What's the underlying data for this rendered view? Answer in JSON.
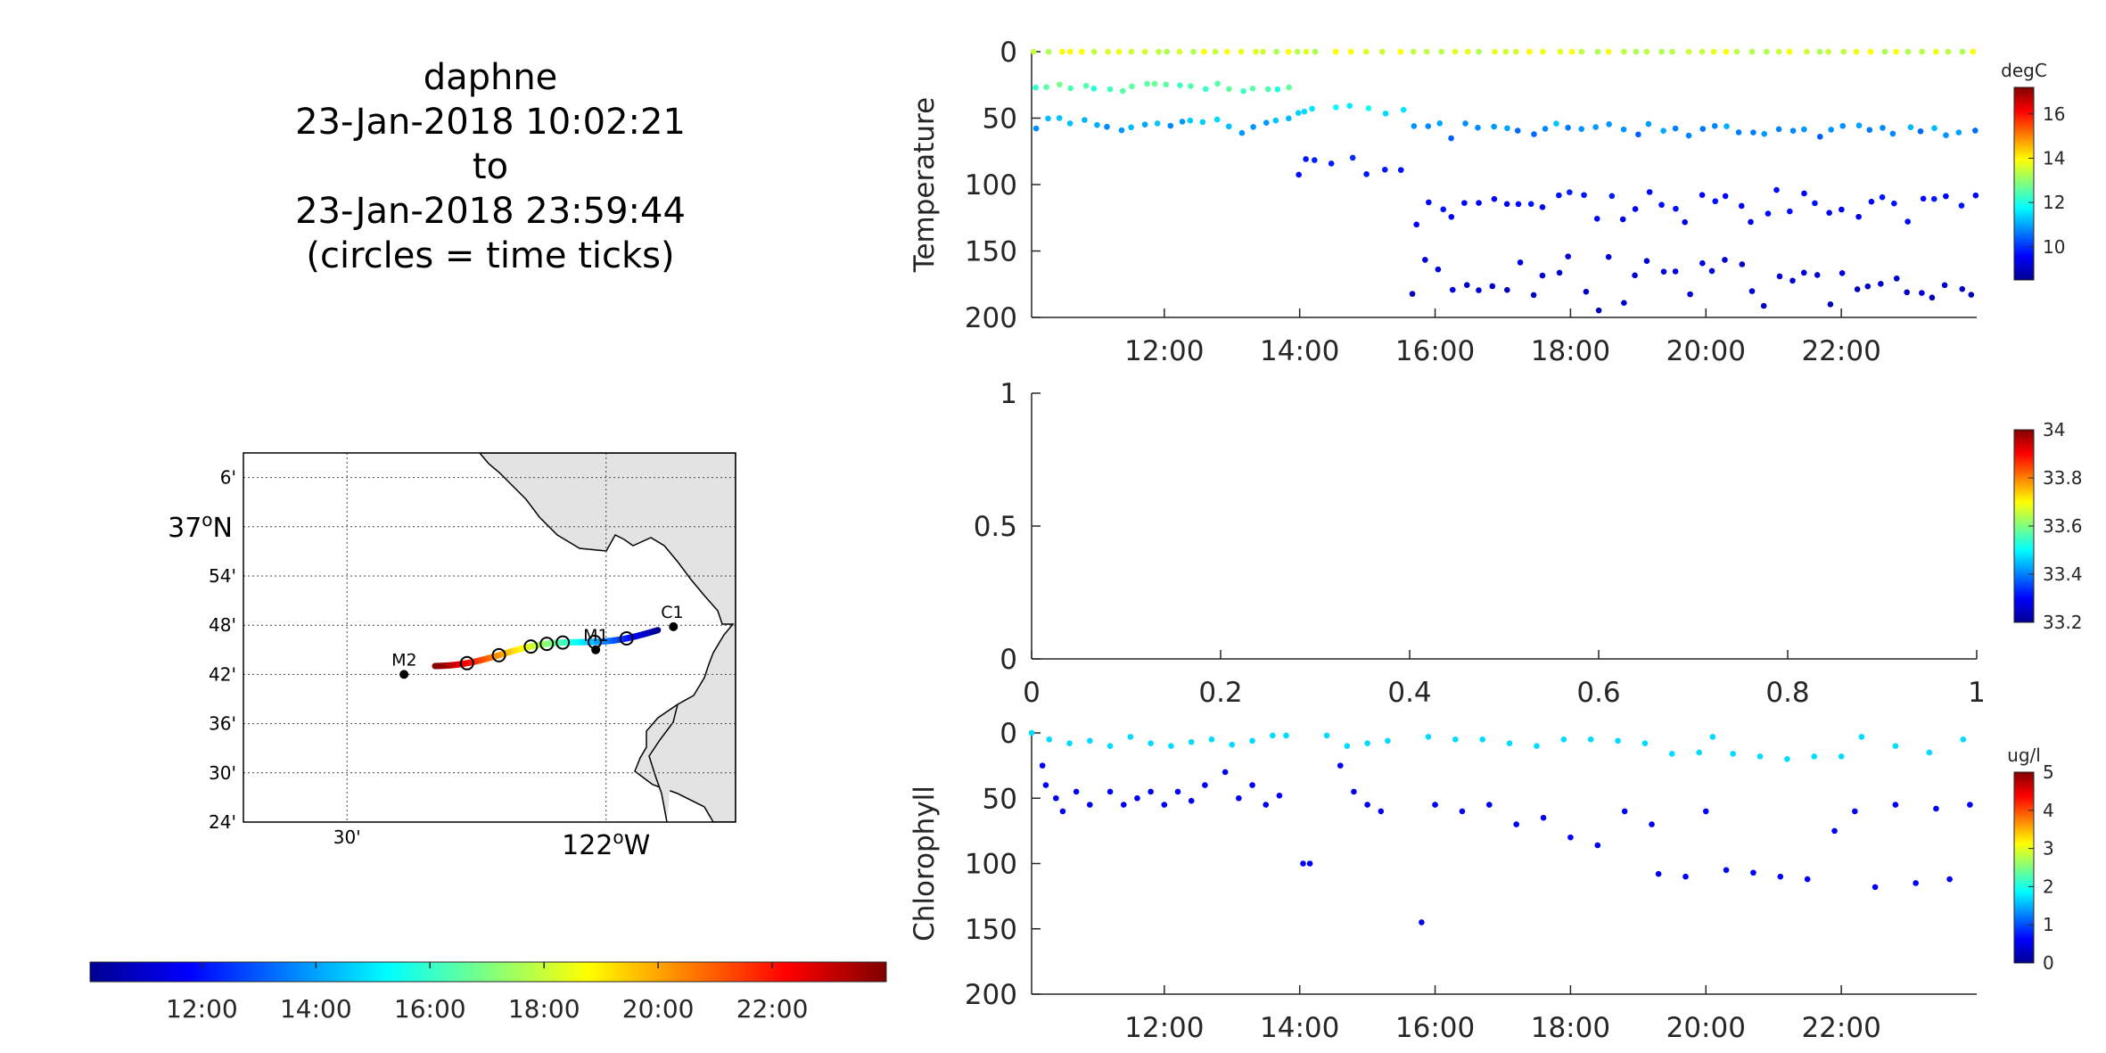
{
  "title": {
    "lines": [
      "daphne",
      "23-Jan-2018 10:02:21",
      "to",
      "23-Jan-2018 23:59:44",
      "(circles = time ticks)"
    ]
  },
  "time_colorbar": {
    "colormap": "jet",
    "range_hours": [
      10.04,
      24.0
    ],
    "tick_hours": [
      12,
      14,
      16,
      18,
      20,
      22
    ],
    "tick_labels": [
      "12:00",
      "14:00",
      "16:00",
      "18:00",
      "20:00",
      "22:00"
    ]
  },
  "map": {
    "lat_ticks": [
      {
        "lat": 37.1,
        "label": "6'",
        "big": false
      },
      {
        "lat": 37.0,
        "label": "37",
        "big": true,
        "sup": "o",
        "suffix": "N"
      },
      {
        "lat": 36.9,
        "label": "54'",
        "big": false
      },
      {
        "lat": 36.8,
        "label": "48'",
        "big": false
      },
      {
        "lat": 36.7,
        "label": "42'",
        "big": false
      },
      {
        "lat": 36.6,
        "label": "36'",
        "big": false
      },
      {
        "lat": 36.5,
        "label": "30'",
        "big": false
      },
      {
        "lat": 36.4,
        "label": "24'",
        "big": false
      }
    ],
    "lon_ticks": [
      {
        "lon": -122.5,
        "label": "30'",
        "big": false
      },
      {
        "lon": -122.0,
        "label": "122",
        "big": true,
        "sup": "o",
        "suffix": "W"
      }
    ],
    "lon_range": [
      -122.7,
      -121.75
    ],
    "lat_range": [
      36.4,
      37.15
    ],
    "moorings": [
      {
        "name": "C1",
        "lon": -121.87,
        "lat": 36.797
      },
      {
        "name": "M1",
        "lon": -122.02,
        "lat": 36.75
      },
      {
        "name": "M2",
        "lon": -122.39,
        "lat": 36.7
      }
    ],
    "track_start": {
      "lon": -121.9,
      "lat": 36.79
    },
    "track_end": {
      "lon": -122.33,
      "lat": 36.72
    },
    "time_tick_hours": [
      12,
      14,
      16,
      17,
      18,
      20,
      22
    ],
    "land_color": "#e3e3e3"
  },
  "chart_data": [
    {
      "type": "scatter",
      "ylabel": "Temperature",
      "xlim": [
        10.04,
        24.0
      ],
      "ylim": [
        0,
        200
      ],
      "y_reversed": true,
      "x_tick_hours": [
        12,
        14,
        16,
        18,
        20,
        22
      ],
      "x_tick_labels": [
        "12:00",
        "14:00",
        "16:00",
        "18:00",
        "20:00",
        "22:00"
      ],
      "y_ticks": [
        0,
        50,
        100,
        150,
        200
      ],
      "y_tick_labels": [
        "0",
        "50",
        "100",
        "150",
        "200"
      ],
      "colorbar": {
        "label": "degC",
        "range": [
          8.5,
          17.2
        ],
        "ticks": [
          10,
          12,
          14,
          16
        ],
        "tick_labels": [
          "10",
          "12",
          "14",
          "16"
        ]
      },
      "profile_groups": [
        {
          "t0": 10.1,
          "t1": 13.85,
          "n": 22,
          "zmax": 62,
          "zmin": 0
        },
        {
          "t0": 14.0,
          "t1": 14.2,
          "n": 3,
          "zmax": 101,
          "zmin": 0
        },
        {
          "t0": 14.5,
          "t1": 15.5,
          "n": 5,
          "zmax": 100,
          "zmin": 0
        },
        {
          "t0": 15.7,
          "t1": 23.95,
          "n": 44,
          "zmax": 198,
          "zmin": 0
        }
      ]
    },
    {
      "type": "scatter",
      "ylabel": "",
      "xlim": [
        0,
        1
      ],
      "ylim": [
        0,
        1
      ],
      "x_ticks": [
        0,
        0.2,
        0.4,
        0.6,
        0.8,
        1
      ],
      "x_tick_labels": [
        "0",
        "0.2",
        "0.4",
        "0.6",
        "0.8",
        "1"
      ],
      "y_ticks": [
        0,
        0.5,
        1
      ],
      "y_tick_labels": [
        "0",
        "0.5",
        "1"
      ],
      "colorbar": {
        "label": "",
        "range": [
          33.2,
          34.0
        ],
        "ticks": [
          33.2,
          33.4,
          33.6,
          33.8,
          34
        ],
        "tick_labels": [
          "33.2",
          "33.4",
          "33.6",
          "33.8",
          "34"
        ]
      },
      "points": []
    },
    {
      "type": "scatter",
      "ylabel": "Chlorophyll",
      "xlim": [
        10.04,
        24.0
      ],
      "ylim": [
        0,
        200
      ],
      "y_reversed": true,
      "x_tick_hours": [
        12,
        14,
        16,
        18,
        20,
        22
      ],
      "x_tick_labels": [
        "12:00",
        "14:00",
        "16:00",
        "18:00",
        "20:00",
        "22:00"
      ],
      "y_ticks": [
        0,
        50,
        100,
        150,
        200
      ],
      "y_tick_labels": [
        "0",
        "50",
        "100",
        "150",
        "200"
      ],
      "colorbar": {
        "label": "ug/l",
        "range": [
          0,
          5
        ],
        "ticks": [
          0,
          1,
          2,
          3,
          4,
          5
        ],
        "tick_labels": [
          "0",
          "1",
          "2",
          "3",
          "4",
          "5"
        ]
      },
      "points_surface": [
        [
          10.04,
          0
        ],
        [
          10.3,
          5
        ],
        [
          10.6,
          8
        ],
        [
          10.9,
          6
        ],
        [
          11.2,
          10
        ],
        [
          11.5,
          3
        ],
        [
          11.8,
          8
        ],
        [
          12.1,
          10
        ],
        [
          12.4,
          7
        ],
        [
          12.7,
          5
        ],
        [
          13.0,
          9
        ],
        [
          13.3,
          6
        ],
        [
          13.6,
          2
        ],
        [
          13.8,
          2
        ],
        [
          14.4,
          2
        ],
        [
          14.7,
          10
        ],
        [
          15.0,
          8
        ],
        [
          15.3,
          6
        ],
        [
          15.9,
          3
        ],
        [
          16.3,
          5
        ],
        [
          16.7,
          5
        ],
        [
          17.1,
          8
        ],
        [
          17.5,
          10
        ],
        [
          17.9,
          5
        ],
        [
          18.3,
          5
        ],
        [
          18.7,
          6
        ],
        [
          19.1,
          8
        ],
        [
          19.5,
          16
        ],
        [
          19.9,
          15
        ],
        [
          20.1,
          3
        ],
        [
          20.4,
          16
        ],
        [
          20.8,
          18
        ],
        [
          21.2,
          20
        ],
        [
          21.6,
          18
        ],
        [
          22.0,
          18
        ],
        [
          22.3,
          3
        ],
        [
          22.8,
          10
        ],
        [
          23.3,
          15
        ],
        [
          23.8,
          5
        ]
      ],
      "points_deep": [
        [
          10.2,
          25
        ],
        [
          10.25,
          40
        ],
        [
          10.4,
          50
        ],
        [
          10.5,
          60
        ],
        [
          10.7,
          45
        ],
        [
          10.9,
          55
        ],
        [
          11.2,
          45
        ],
        [
          11.4,
          55
        ],
        [
          11.6,
          50
        ],
        [
          11.8,
          45
        ],
        [
          12.0,
          55
        ],
        [
          12.2,
          45
        ],
        [
          12.4,
          52
        ],
        [
          12.6,
          40
        ],
        [
          12.9,
          30
        ],
        [
          13.1,
          50
        ],
        [
          13.3,
          40
        ],
        [
          13.5,
          55
        ],
        [
          13.7,
          48
        ],
        [
          14.05,
          100
        ],
        [
          14.15,
          100
        ],
        [
          14.6,
          25
        ],
        [
          14.8,
          45
        ],
        [
          15.0,
          55
        ],
        [
          15.2,
          60
        ],
        [
          15.8,
          145
        ],
        [
          16.0,
          55
        ],
        [
          16.4,
          60
        ],
        [
          16.8,
          55
        ],
        [
          17.2,
          70
        ],
        [
          17.6,
          65
        ],
        [
          18.0,
          80
        ],
        [
          18.4,
          86
        ],
        [
          18.8,
          60
        ],
        [
          19.2,
          70
        ],
        [
          19.3,
          108
        ],
        [
          19.7,
          110
        ],
        [
          20.0,
          60
        ],
        [
          20.3,
          105
        ],
        [
          20.7,
          107
        ],
        [
          21.1,
          110
        ],
        [
          21.5,
          112
        ],
        [
          21.9,
          75
        ],
        [
          22.2,
          60
        ],
        [
          22.5,
          118
        ],
        [
          22.8,
          55
        ],
        [
          23.1,
          115
        ],
        [
          23.4,
          58
        ],
        [
          23.6,
          112
        ],
        [
          23.9,
          55
        ]
      ]
    }
  ]
}
